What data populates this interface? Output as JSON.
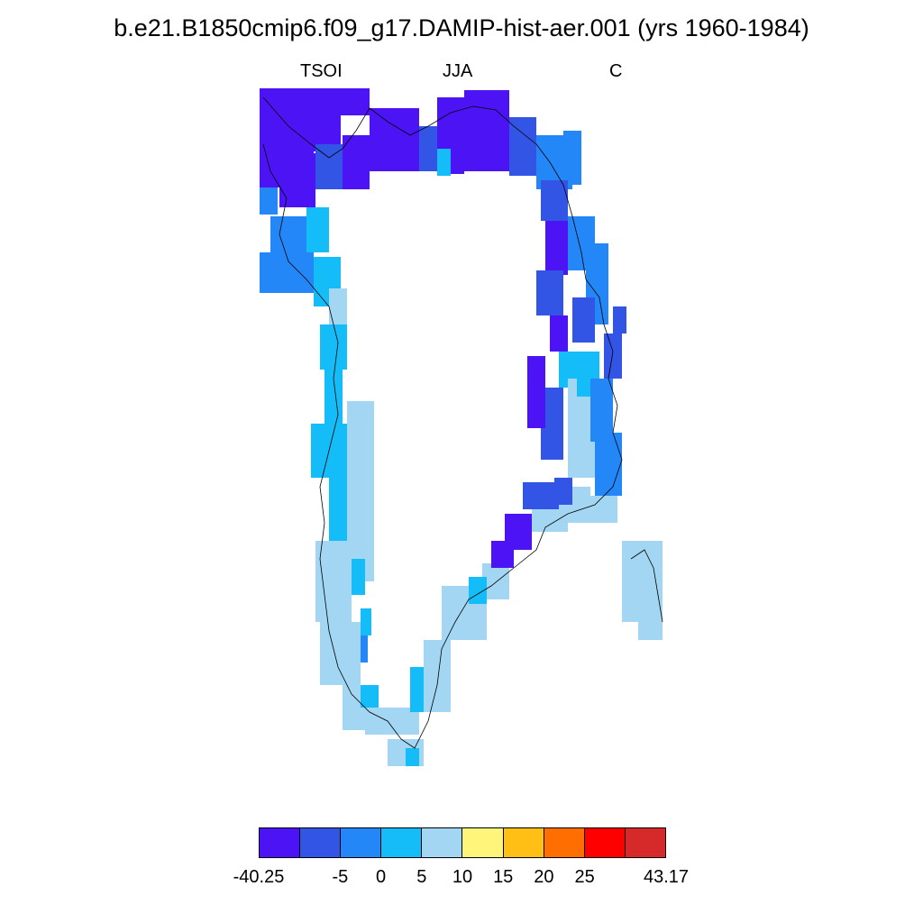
{
  "title": "b.e21.B1850cmip6.f09_g17.DAMIP-hist-aer.001 (yrs 1960-1984)",
  "subtitle": {
    "variable": "TSOI",
    "season": "JJA",
    "units": "C"
  },
  "colorbar": {
    "colors": [
      "#4c14f5",
      "#3355e6",
      "#2387f7",
      "#14bdf7",
      "#a3d6f2",
      "#fff57a",
      "#ffbf14",
      "#ff6e00",
      "#ff0000",
      "#d62a2a"
    ],
    "labels": [
      "-40.25",
      "-5",
      "0",
      "5",
      "10",
      "15",
      "20",
      "25",
      "43.17"
    ],
    "label_boundaries": [
      0,
      2,
      3,
      4,
      5,
      6,
      7,
      8,
      10
    ]
  },
  "icons": [
    "greenland-map-icon"
  ]
}
